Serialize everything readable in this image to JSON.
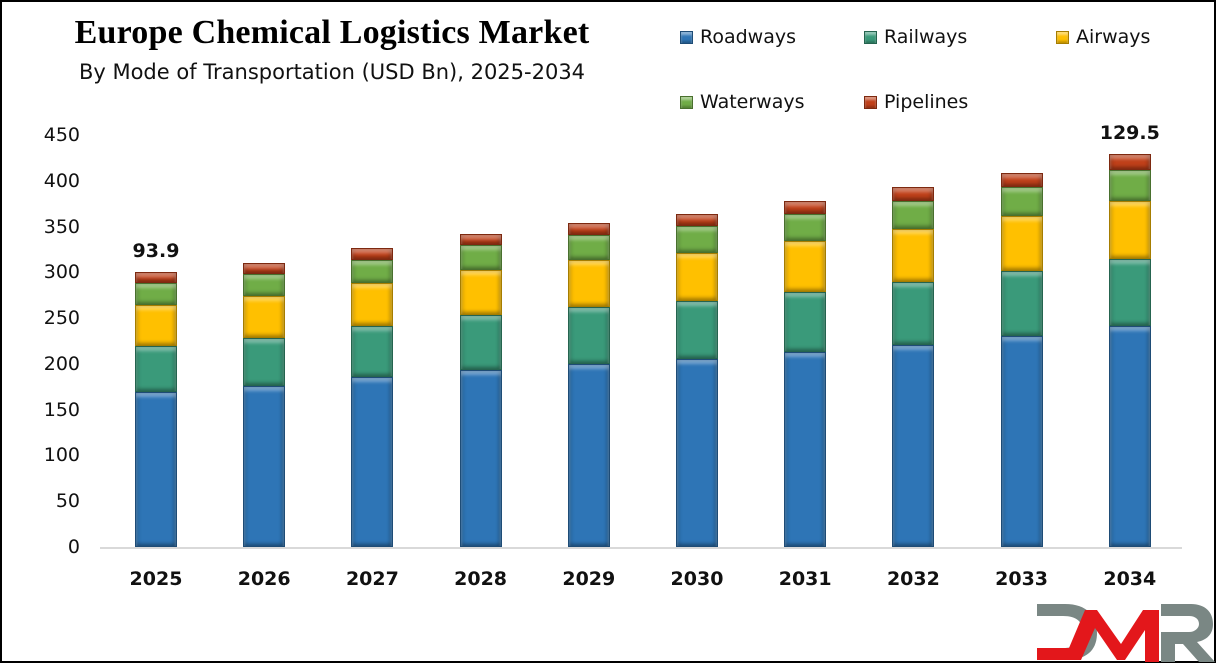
{
  "chart": {
    "title": "Europe Chemical Logistics Market",
    "subtitle": "By Mode of Transportation (USD Bn), 2025-2034",
    "legend": [
      {
        "label": "Roadways",
        "color": "#2E75B6"
      },
      {
        "label": "Railways",
        "color": "#3A9A7A"
      },
      {
        "label": "Airways",
        "color": "#FFC000"
      },
      {
        "label": "Waterways",
        "color": "#70AD47"
      },
      {
        "label": "Pipelines",
        "color": "#C0401A"
      }
    ],
    "y_ticks": [
      "0",
      "50",
      "100",
      "150",
      "200",
      "250",
      "300",
      "350",
      "400",
      "450"
    ],
    "x_ticks": [
      "2025",
      "2026",
      "2027",
      "2028",
      "2029",
      "2030",
      "2031",
      "2032",
      "2033",
      "2034"
    ],
    "annotations": {
      "first": "93.9",
      "last": "129.5"
    },
    "logo_text": "DMR"
  },
  "chart_data": {
    "type": "bar",
    "stacked": true,
    "title": "Europe Chemical Logistics Market",
    "subtitle": "By Mode of Transportation (USD Bn), 2025-2034",
    "xlabel": "",
    "ylabel": "",
    "ylim": [
      0,
      450
    ],
    "y_ticks": [
      0,
      50,
      100,
      150,
      200,
      250,
      300,
      350,
      400,
      450
    ],
    "grid": false,
    "legend_position": "top-right",
    "categories": [
      "2025",
      "2026",
      "2027",
      "2028",
      "2029",
      "2030",
      "2031",
      "2032",
      "2033",
      "2034"
    ],
    "series": [
      {
        "name": "Roadways",
        "color": "#2E75B6",
        "values": [
          169,
          176,
          186,
          193,
          200,
          205,
          213,
          221,
          230,
          241
        ]
      },
      {
        "name": "Railways",
        "color": "#3A9A7A",
        "values": [
          51,
          52,
          55,
          60,
          62,
          64,
          65,
          68,
          71,
          74
        ]
      },
      {
        "name": "Airways",
        "color": "#FFC000",
        "values": [
          44,
          46,
          47,
          50,
          51,
          52,
          56,
          58,
          60,
          63
        ]
      },
      {
        "name": "Waterways",
        "color": "#70AD47",
        "values": [
          24,
          24,
          26,
          27,
          28,
          30,
          30,
          31,
          32,
          34
        ]
      },
      {
        "name": "Pipelines",
        "color": "#C0401A",
        "values": [
          12,
          12,
          13,
          12,
          13,
          13,
          14,
          15,
          16,
          17
        ]
      }
    ],
    "annotations": [
      {
        "category": "2025",
        "text": "93.9"
      },
      {
        "category": "2034",
        "text": "129.5"
      }
    ]
  }
}
